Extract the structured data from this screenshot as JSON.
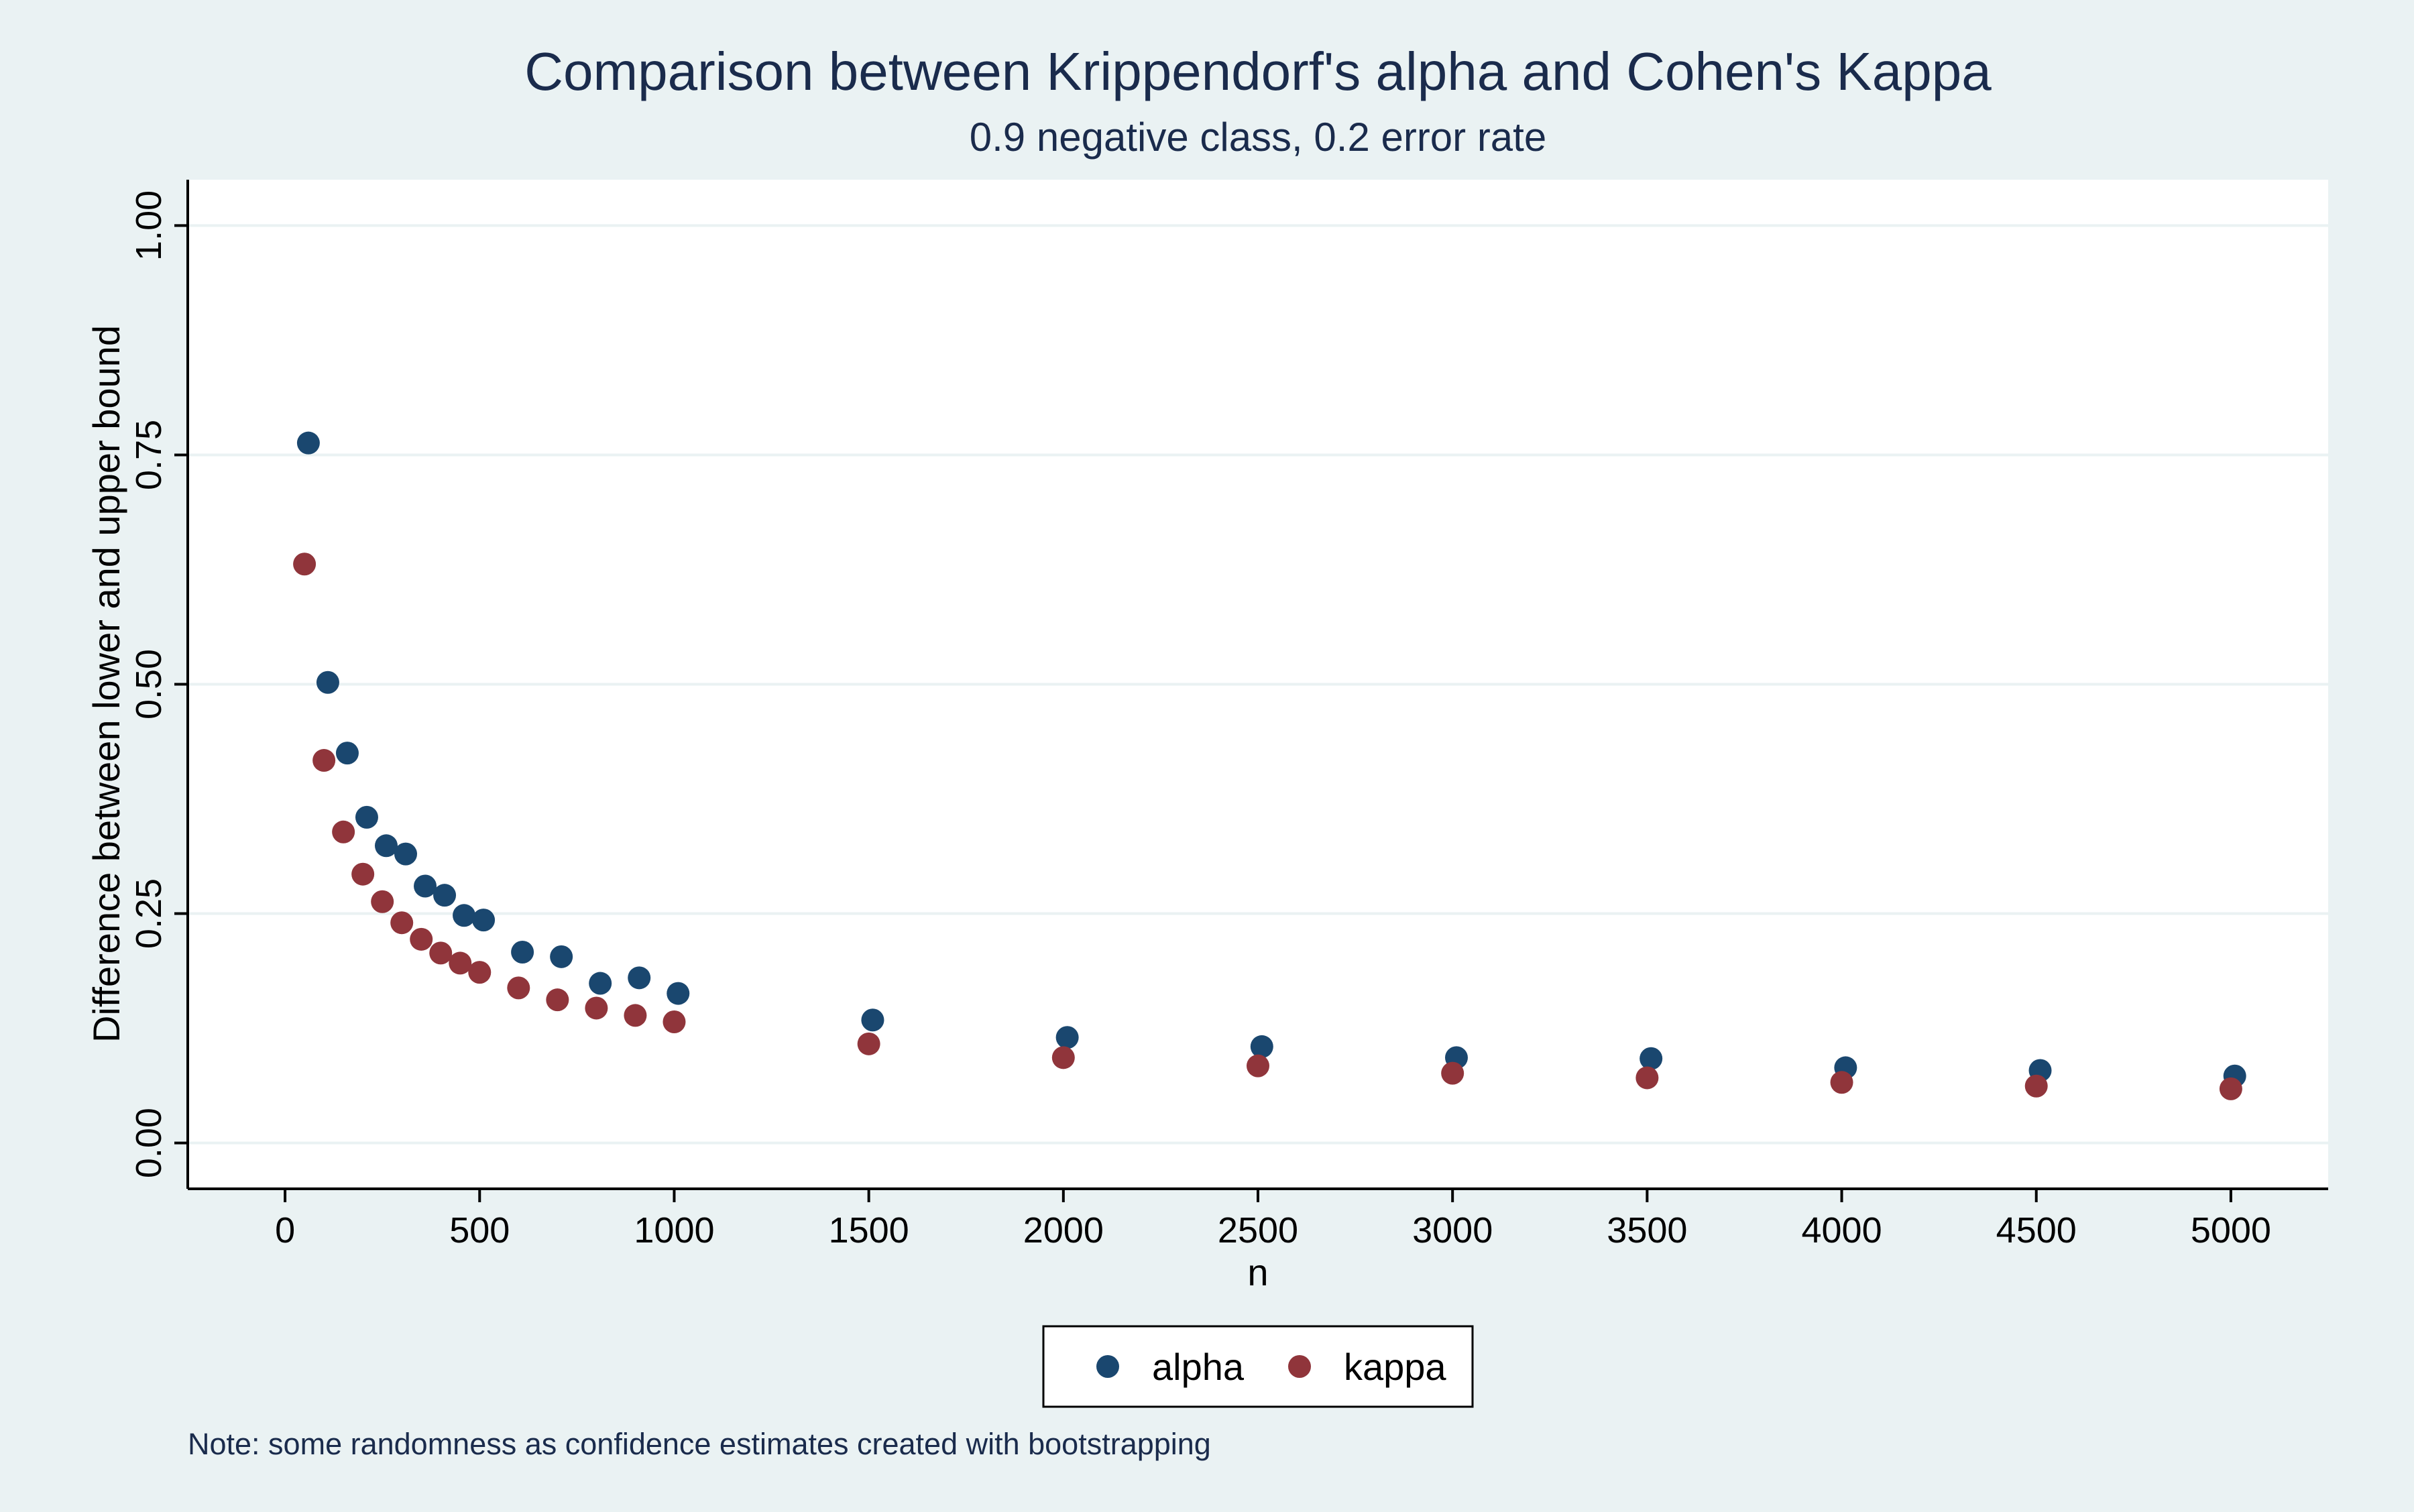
{
  "chart_data": {
    "type": "scatter",
    "title": "Comparison between Krippendorf's alpha and Cohen's Kappa",
    "subtitle": "0.9 negative class, 0.2 error rate",
    "xlabel": "n",
    "ylabel": "Difference between lower and upper bound",
    "xlim": [
      -250,
      5250
    ],
    "ylim": [
      -0.05,
      1.05
    ],
    "x_ticks": [
      0,
      500,
      1000,
      1500,
      2000,
      2500,
      3000,
      3500,
      4000,
      4500,
      5000
    ],
    "x_tick_labels": [
      "0",
      "500",
      "1000",
      "1500",
      "2000",
      "2500",
      "3000",
      "3500",
      "4000",
      "4500",
      "5000"
    ],
    "y_ticks": [
      0,
      0.25,
      0.5,
      0.75,
      1.0
    ],
    "y_tick_labels": [
      "0.00",
      "0.25",
      "0.50",
      "0.75",
      "1.00"
    ],
    "grid": true,
    "legend_position": "bottom",
    "note": "Note: some randomness as confidence estimates created with bootstrapping",
    "series": [
      {
        "name": "alpha",
        "color": "#1a476f",
        "x": [
          60,
          110,
          160,
          210,
          260,
          310,
          360,
          410,
          460,
          510,
          610,
          710,
          810,
          910,
          1010,
          1510,
          2010,
          2510,
          3010,
          3510,
          4010,
          4510,
          5010
        ],
        "y": [
          0.763,
          0.502,
          0.425,
          0.355,
          0.324,
          0.315,
          0.28,
          0.27,
          0.248,
          0.243,
          0.208,
          0.203,
          0.174,
          0.18,
          0.163,
          0.134,
          0.115,
          0.105,
          0.093,
          0.092,
          0.082,
          0.079,
          0.073
        ]
      },
      {
        "name": "kappa",
        "color": "#90353b",
        "x": [
          50,
          100,
          150,
          200,
          250,
          300,
          350,
          400,
          450,
          500,
          600,
          700,
          800,
          900,
          1000,
          1500,
          2000,
          2500,
          3000,
          3500,
          4000,
          4500,
          5000
        ],
        "y": [
          0.631,
          0.417,
          0.339,
          0.293,
          0.263,
          0.24,
          0.222,
          0.207,
          0.196,
          0.186,
          0.169,
          0.156,
          0.147,
          0.139,
          0.132,
          0.108,
          0.093,
          0.084,
          0.076,
          0.071,
          0.066,
          0.062,
          0.059
        ]
      }
    ]
  }
}
